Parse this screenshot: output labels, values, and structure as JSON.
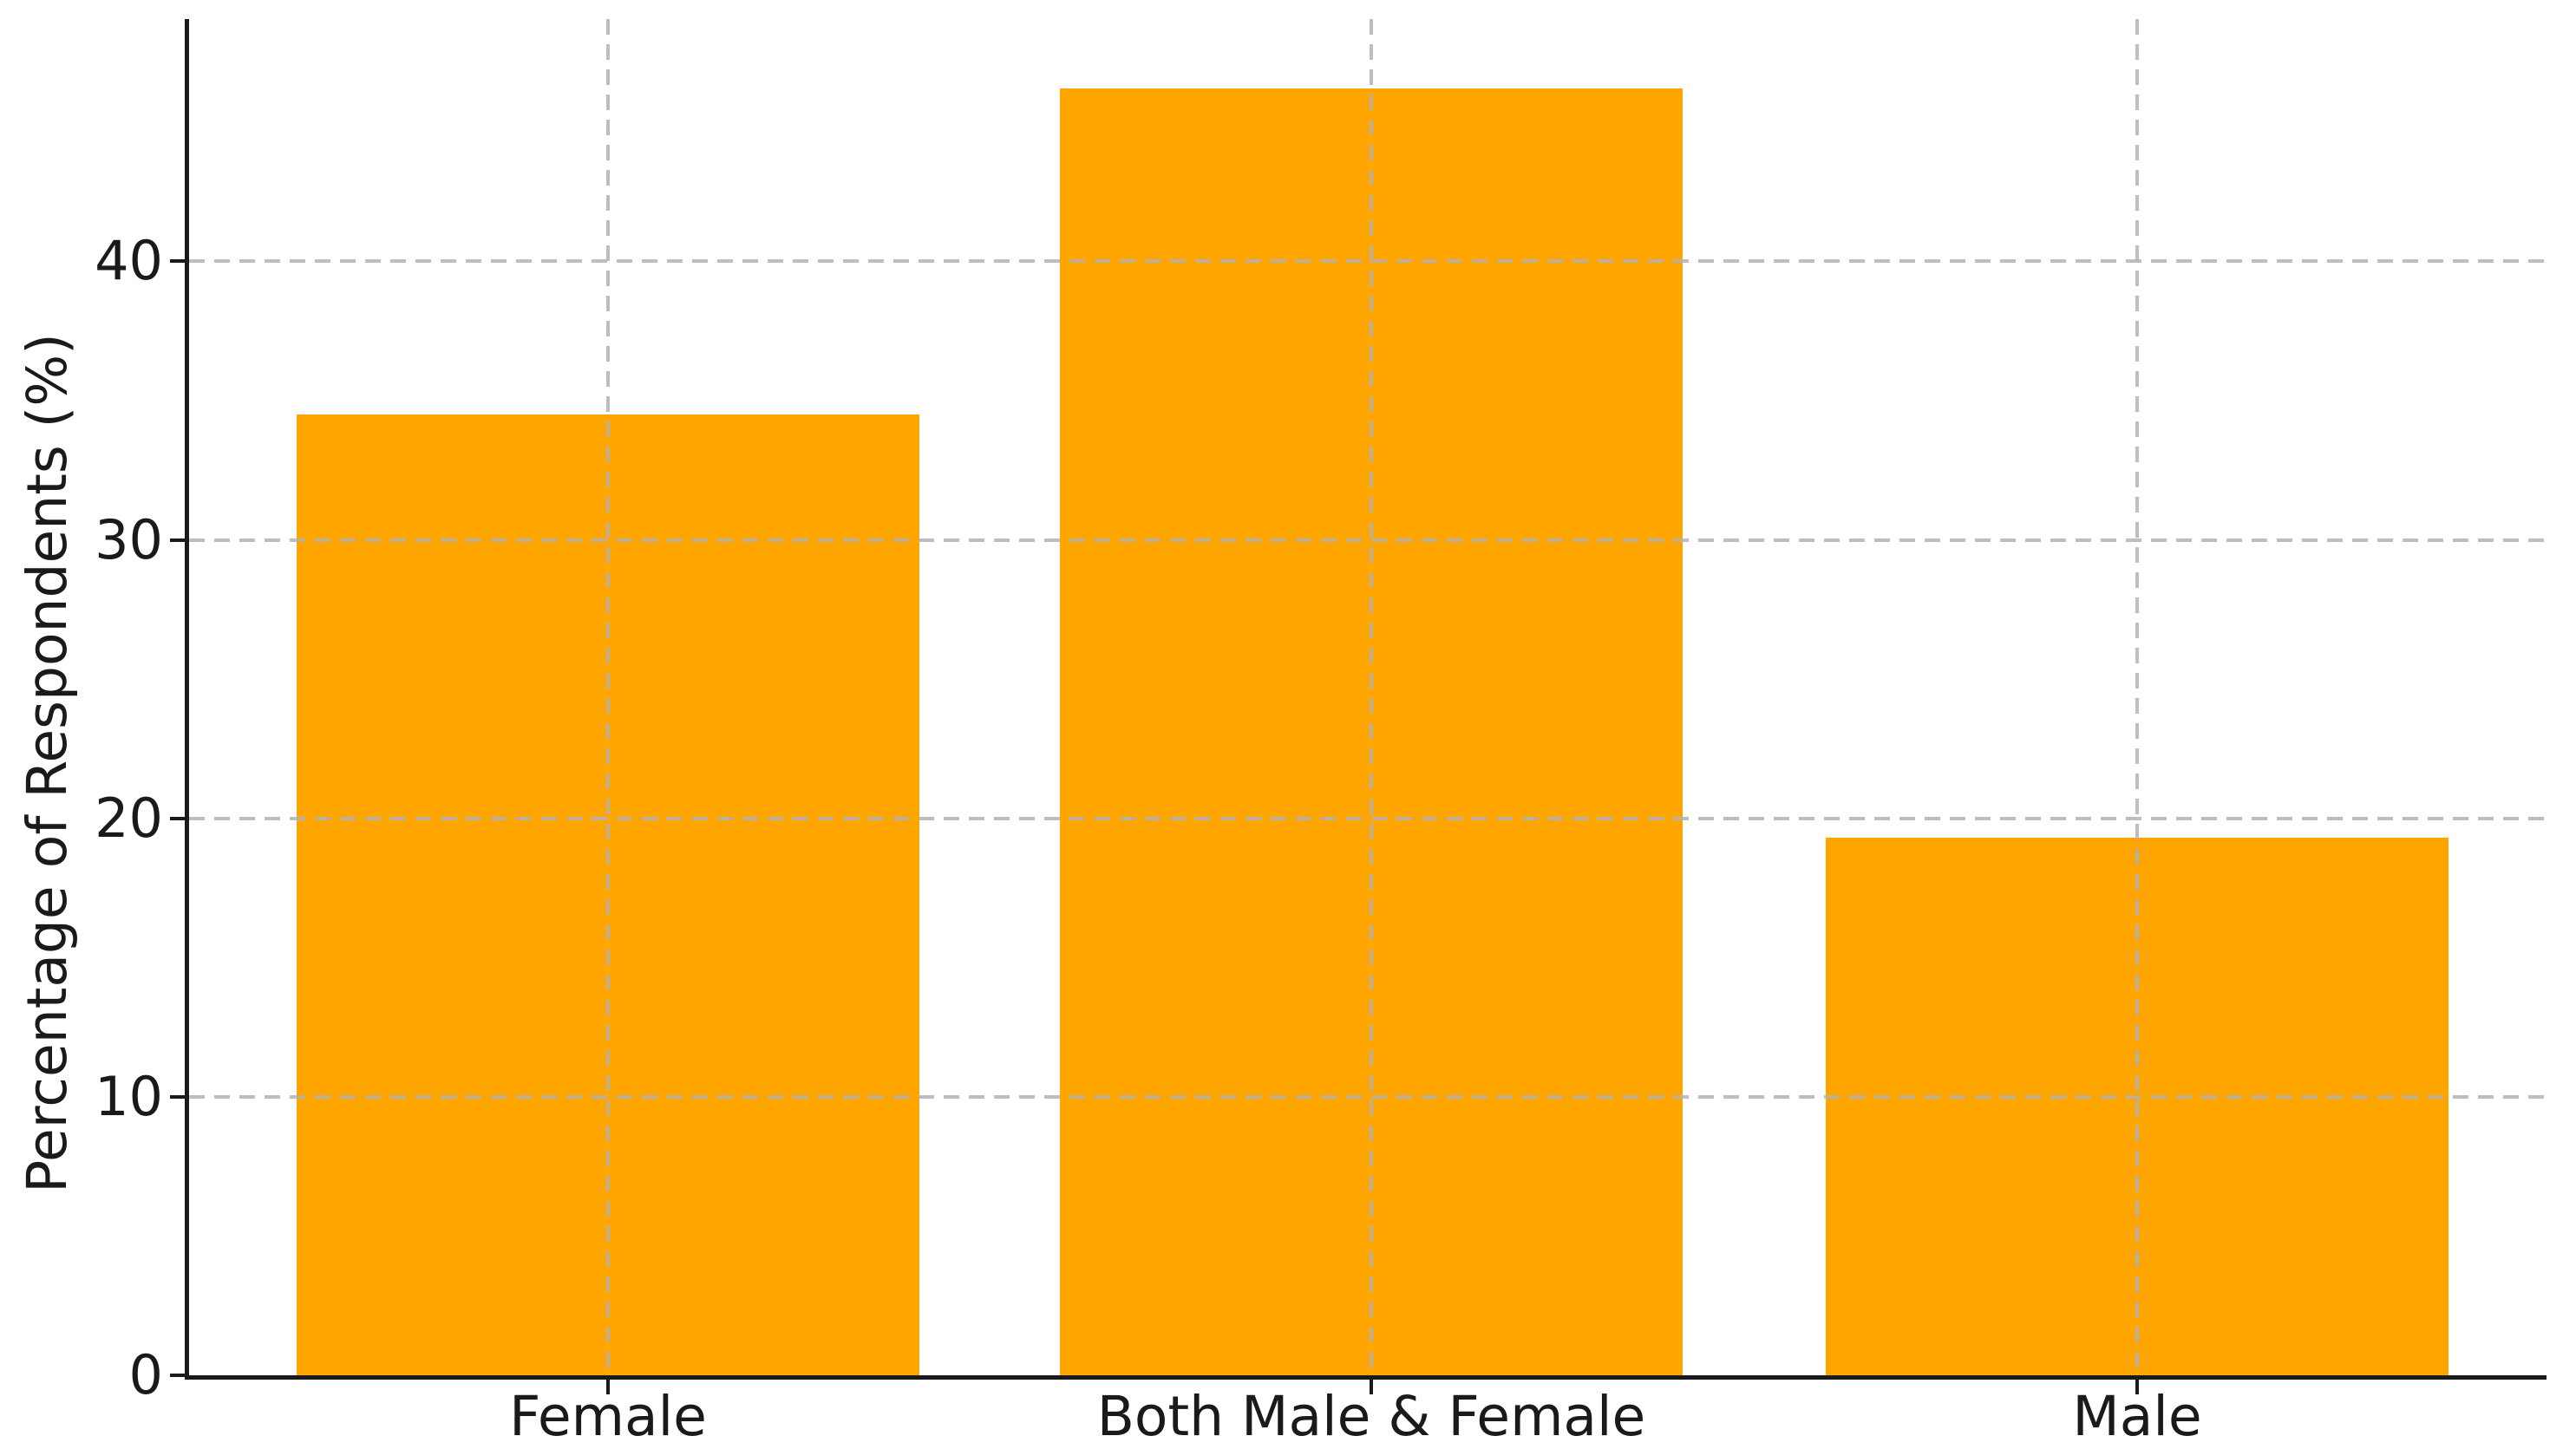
{
  "chart_data": {
    "type": "bar",
    "title": "",
    "xlabel": "",
    "ylabel": "Percentage of Respondents (%)",
    "categories": [
      "Female",
      "Both Male & Female",
      "Male"
    ],
    "values": [
      34.5,
      46.2,
      19.3
    ],
    "yticks": [
      0,
      10,
      20,
      30,
      40
    ],
    "ytick_labels": [
      "0",
      "10",
      "20",
      "30",
      "40"
    ],
    "ylim": [
      0,
      48.7
    ],
    "bar_color": "#FFA500",
    "grid": "dashed, both axes, drawn above bars",
    "grid_color": "#c9c9c9",
    "spine_color": "#1a1a1a",
    "legend_position": "none"
  }
}
